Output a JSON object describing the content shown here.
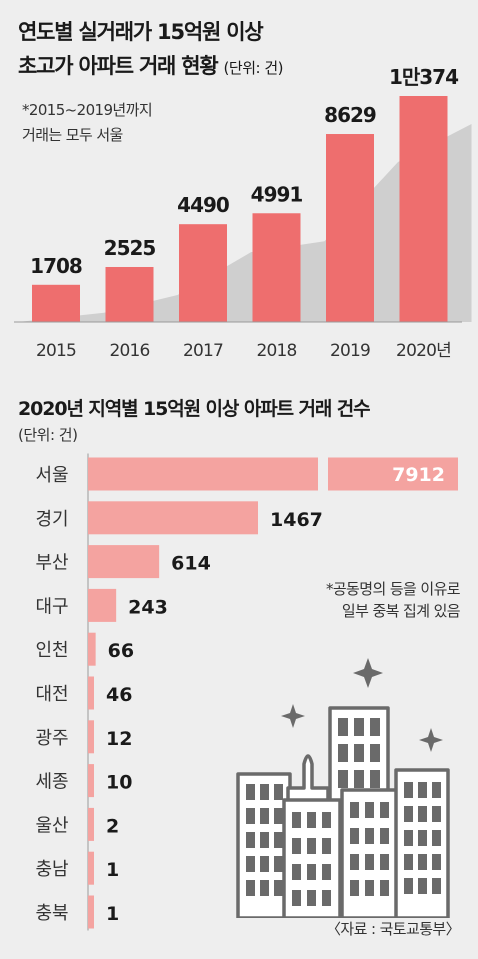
{
  "chart_data": [
    {
      "type": "bar",
      "title": "연도별 실거래가 15억원 이상",
      "subtitle": "초고가 아파트 거래 현황",
      "unit": "(단위: 건)",
      "note_lines": [
        "*2015~2019년까지",
        "거래는 모두 서울"
      ],
      "categories": [
        "2015",
        "2016",
        "2017",
        "2018",
        "2019",
        "2020년"
      ],
      "values": [
        1708,
        2525,
        4490,
        4991,
        8629,
        10374
      ],
      "value_labels": [
        "1708",
        "2525",
        "4490",
        "4991",
        "8629",
        "1만374"
      ],
      "color": "#ee6e6e",
      "shadow_color": "#cfcfcf"
    },
    {
      "type": "bar",
      "orientation": "horizontal",
      "title": "2020년 지역별 15억원 이상 아파트 거래 건수",
      "unit": "(단위: 건)",
      "categories": [
        "서울",
        "경기",
        "부산",
        "대구",
        "인천",
        "대전",
        "광주",
        "세종",
        "울산",
        "충남",
        "충북"
      ],
      "values": [
        7912,
        1467,
        614,
        243,
        66,
        46,
        12,
        10,
        2,
        1,
        1
      ],
      "value_labels": [
        "7912",
        "1467",
        "614",
        "243",
        "66",
        "46",
        "12",
        "10",
        "2",
        "1",
        "1"
      ],
      "broken_axis_first_bar": true,
      "color": "#f4a3a0"
    }
  ],
  "footnote_lines": [
    "*공동명의 등을 이유로",
    "일부 중복 집계 있음"
  ],
  "source": "〈자료 : 국토교통부〉",
  "icon": "city-buildings-icon"
}
